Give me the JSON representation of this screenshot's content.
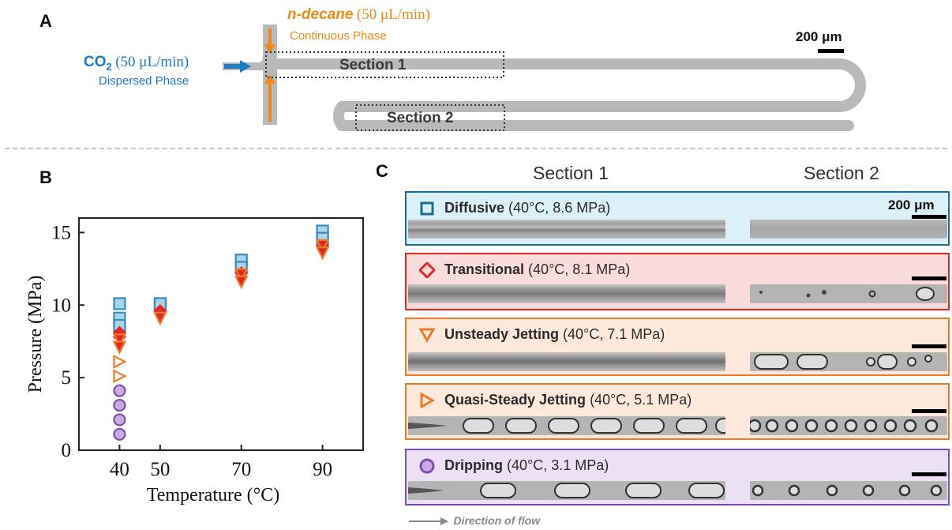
{
  "panel_a": {
    "letter": "A",
    "co2_name": "CO",
    "co2_sub": "2",
    "co2_rate": "(50 μL/min)",
    "co2_phase": "Dispersed Phase",
    "decane_name": "n-decane",
    "decane_rate": "(50 μL/min)",
    "decane_phase": "Continuous Phase",
    "section1": "Section 1",
    "section2": "Section 2",
    "scale": "200 μm",
    "colors": {
      "co2": "#1f7bc2",
      "decane": "#ee8a1a",
      "channel": "#b9b9b9"
    }
  },
  "panel_b": {
    "letter": "B"
  },
  "panel_c": {
    "letter": "C",
    "col1": "Section 1",
    "col2": "Section 2",
    "scale": "200 μm",
    "direction": "Direction of flow",
    "regimes": [
      {
        "name": "Diffusive",
        "cond": "(40°C, 8.6 MPa)",
        "symbol": "square-icon",
        "color": "#1a6d94",
        "bg": "#dcf0f8"
      },
      {
        "name": "Transitional",
        "cond": "(40°C, 8.1 MPa)",
        "symbol": "diamond-icon",
        "color": "#e32626",
        "bg": "#fadcdc"
      },
      {
        "name": "Unsteady Jetting",
        "cond": "(40°C, 7.1 MPa)",
        "symbol": "triangle-down-icon",
        "color": "#ee7a2a",
        "bg": "#fde9dc"
      },
      {
        "name": "Quasi-Steady Jetting",
        "cond": "(40°C, 5.1 MPa)",
        "symbol": "triangle-right-icon",
        "color": "#ee7a2a",
        "bg": "#fde9dc"
      },
      {
        "name": "Dripping",
        "cond": "(40°C, 3.1 MPa)",
        "symbol": "circle-icon",
        "color": "#7a4fb0",
        "bg": "#ece0f4"
      }
    ]
  },
  "chart_data": {
    "type": "scatter",
    "xlabel": "Temperature (°C)",
    "ylabel": "Pressure (MPa)",
    "xticks": [
      40,
      50,
      70,
      90
    ],
    "yticks": [
      0,
      5,
      10,
      15
    ],
    "xlim": [
      30,
      100
    ],
    "ylim": [
      0,
      16
    ],
    "series": [
      {
        "name": "Diffusive",
        "marker": "square",
        "color": "#3a8bbd",
        "fill": "#a9d4ea",
        "points": [
          [
            40,
            10.1
          ],
          [
            40,
            9.1
          ],
          [
            40,
            8.6
          ],
          [
            50,
            10.1
          ],
          [
            70,
            13.1
          ],
          [
            70,
            12.6
          ],
          [
            90,
            15.1
          ],
          [
            90,
            14.6
          ]
        ]
      },
      {
        "name": "Transitional",
        "marker": "diamond",
        "color": "#e32626",
        "fill": "#e32626",
        "points": [
          [
            40,
            8.1
          ],
          [
            40,
            7.8
          ],
          [
            50,
            9.6
          ],
          [
            70,
            12.2
          ],
          [
            90,
            14.1
          ]
        ]
      },
      {
        "name": "Unsteady Jetting",
        "marker": "triangle-down",
        "color": "#ee7a2a",
        "fill": "#e32626",
        "points": [
          [
            40,
            7.6
          ],
          [
            40,
            7.1
          ],
          [
            50,
            9.1
          ],
          [
            70,
            12.1
          ],
          [
            70,
            11.6
          ],
          [
            90,
            14.1
          ],
          [
            90,
            13.6
          ]
        ]
      },
      {
        "name": "Quasi-Steady Jetting",
        "marker": "triangle-right",
        "color": "#ee7a2a",
        "fill": "none",
        "points": [
          [
            40,
            6.1
          ],
          [
            40,
            5.1
          ]
        ]
      },
      {
        "name": "Dripping",
        "marker": "circle",
        "color": "#7a4fb0",
        "fill": "#c9a9e6",
        "points": [
          [
            40,
            4.1
          ],
          [
            40,
            3.1
          ],
          [
            40,
            2.1
          ],
          [
            40,
            1.1
          ]
        ]
      }
    ]
  }
}
